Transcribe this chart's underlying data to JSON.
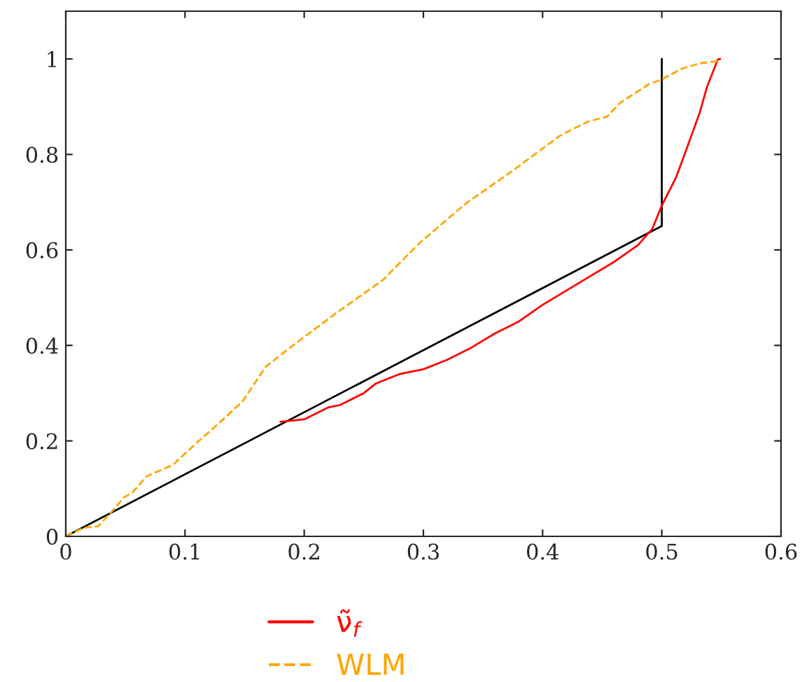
{
  "chart_data": {
    "type": "line",
    "series": [
      {
        "color": "#000000",
        "line_style": "solid",
        "x": [
          0,
          0.5,
          0.5
        ],
        "values": [
          0,
          0.65,
          1.0
        ]
      },
      {
        "name": "ν̃$_{f}$",
        "color": "#ff0000",
        "line_style": "solid",
        "x": [
          0.18,
          0.2,
          0.22,
          0.23,
          0.25,
          0.26,
          0.28,
          0.3,
          0.32,
          0.34,
          0.36,
          0.38,
          0.4,
          0.42,
          0.44,
          0.46,
          0.48,
          0.492,
          0.5,
          0.512,
          0.522,
          0.532,
          0.538,
          0.547,
          0.549
        ],
        "values": [
          0.24,
          0.245,
          0.27,
          0.275,
          0.3,
          0.32,
          0.34,
          0.35,
          0.37,
          0.395,
          0.425,
          0.45,
          0.485,
          0.515,
          0.545,
          0.575,
          0.61,
          0.644,
          0.693,
          0.752,
          0.82,
          0.889,
          0.942,
          0.999,
          1.0
        ]
      },
      {
        "name": "WLM",
        "color": "#ffa500",
        "line_style": "dashed",
        "x": [
          0,
          0.015,
          0.027,
          0.039,
          0.049,
          0.056,
          0.068,
          0.09,
          0.109,
          0.129,
          0.148,
          0.168,
          0.188,
          0.227,
          0.266,
          0.297,
          0.336,
          0.375,
          0.415,
          0.438,
          0.454,
          0.465,
          0.489,
          0.5,
          0.516,
          0.532,
          0.549
        ],
        "values": [
          0,
          0.018,
          0.021,
          0.053,
          0.082,
          0.092,
          0.126,
          0.15,
          0.194,
          0.238,
          0.282,
          0.356,
          0.395,
          0.468,
          0.537,
          0.615,
          0.698,
          0.766,
          0.84,
          0.869,
          0.879,
          0.908,
          0.947,
          0.957,
          0.979,
          0.991,
          0.996
        ]
      }
    ],
    "xlim": [
      0,
      0.6
    ],
    "xticks": [
      0,
      0.1,
      0.2,
      0.3,
      0.4,
      0.5,
      0.6
    ],
    "ylim": [
      0,
      1.1
    ],
    "yticks": [
      0,
      0.2,
      0.4,
      0.6,
      0.8,
      1
    ],
    "grid": false,
    "legend": "bottom",
    "marker": "none"
  }
}
